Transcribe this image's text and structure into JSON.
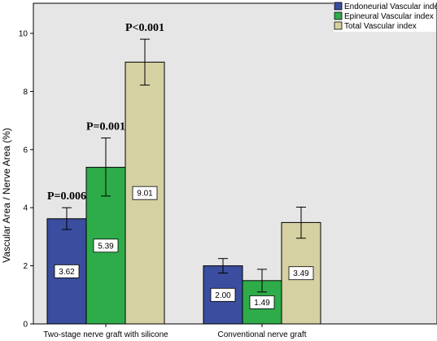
{
  "chart_data": {
    "type": "bar",
    "title": "",
    "xlabel": "",
    "ylabel": "Vascular Area / Nerve Area (%)",
    "ylim": [
      0,
      11
    ],
    "yticks": [
      0,
      2,
      4,
      6,
      8,
      10
    ],
    "categories": [
      "Two-stage nerve graft with silicone",
      "Conventional nerve graft"
    ],
    "series": [
      {
        "name": "Endoneurial Vascular index",
        "color": "#3a4d9e",
        "values": [
          3.62,
          2.0
        ],
        "error_low": [
          3.25,
          1.75
        ],
        "error_high": [
          4.0,
          2.25
        ],
        "data_labels": [
          "3.62",
          "2.00"
        ]
      },
      {
        "name": "Epineural Vascular index",
        "color": "#2eac49",
        "values": [
          5.39,
          1.49
        ],
        "error_low": [
          4.4,
          1.1
        ],
        "error_high": [
          6.4,
          1.88
        ],
        "data_labels": [
          "5.39",
          "1.49"
        ]
      },
      {
        "name": "Total Vascular index",
        "color": "#d6d1a3",
        "values": [
          9.01,
          3.49
        ],
        "error_low": [
          8.22,
          2.95
        ],
        "error_high": [
          9.8,
          4.02
        ],
        "data_labels": [
          "9.01",
          "3.49"
        ]
      }
    ],
    "annotations": [
      {
        "text": "P=0.006",
        "category": 0,
        "series": 0
      },
      {
        "text": "P=0.001",
        "category": 0,
        "series": 1
      },
      {
        "text": "P<0.001",
        "category": 0,
        "series": 2
      }
    ],
    "legend_position": "top-right",
    "background": "#e6e6e6",
    "grid": false
  }
}
